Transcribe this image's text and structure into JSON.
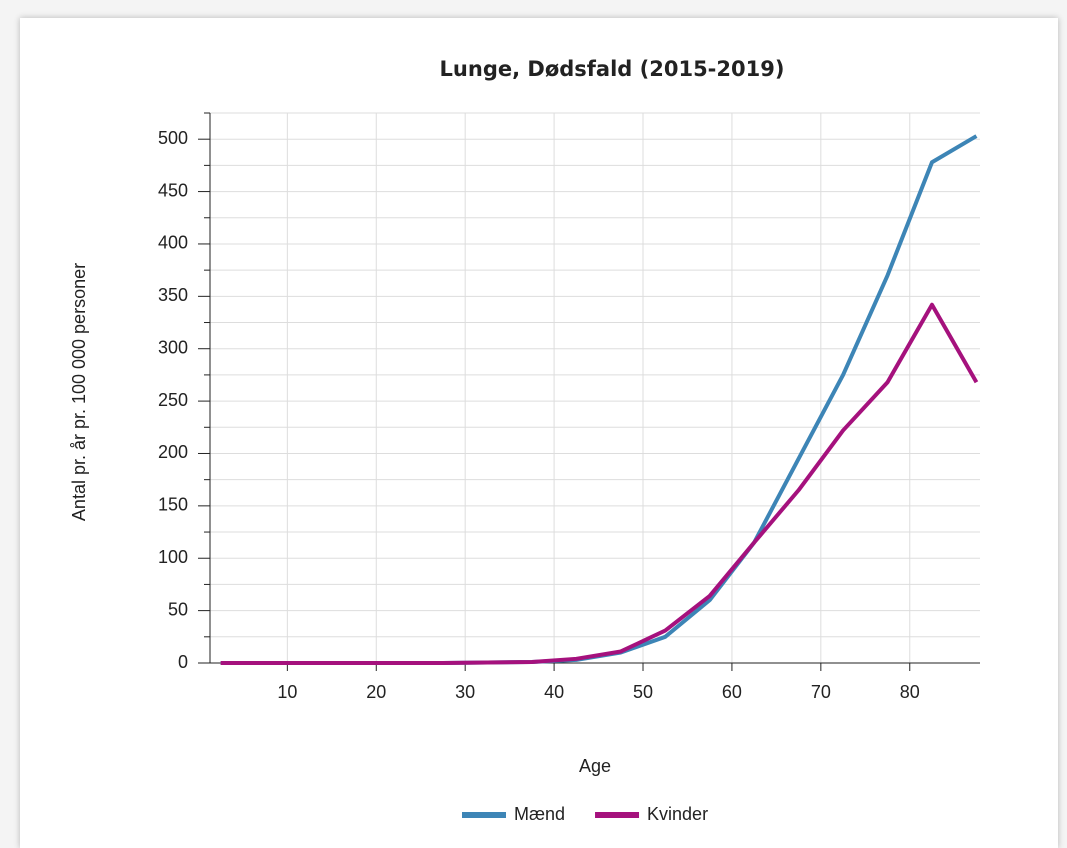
{
  "chart_data": {
    "type": "line",
    "title": "Lunge, Dødsfald (2015-2019)",
    "xlabel": "Age",
    "ylabel": "Antal pr. år pr. 100 000 personer",
    "x": [
      2.5,
      7.5,
      12.5,
      17.5,
      22.5,
      27.5,
      32.5,
      37.5,
      42.5,
      47.5,
      52.5,
      57.5,
      62.5,
      67.5,
      72.5,
      77.5,
      82.5,
      87.5
    ],
    "series": [
      {
        "name": "Mænd",
        "color": "#3d85b6",
        "values": [
          0,
          0,
          0,
          0,
          0,
          0,
          0.5,
          1,
          3,
          10,
          25,
          60,
          115,
          195,
          275,
          370,
          478,
          503
        ]
      },
      {
        "name": "Kvinder",
        "color": "#a5117d",
        "values": [
          0,
          0,
          0,
          0,
          0,
          0,
          0.5,
          1,
          4,
          11,
          31,
          64,
          115,
          165,
          222,
          268,
          342,
          268
        ]
      }
    ],
    "xlim": [
      1.3,
      87.9
    ],
    "xticks": [
      10,
      20,
      30,
      40,
      50,
      60,
      70,
      80
    ],
    "ylim": [
      0,
      525
    ],
    "yticks": [
      0,
      50,
      100,
      150,
      200,
      250,
      300,
      350,
      400,
      450,
      500
    ],
    "y_minor_ticks": [
      25,
      75,
      125,
      175,
      225,
      275,
      325,
      375,
      425,
      475,
      525
    ],
    "grid": true,
    "legend": "bottom"
  }
}
